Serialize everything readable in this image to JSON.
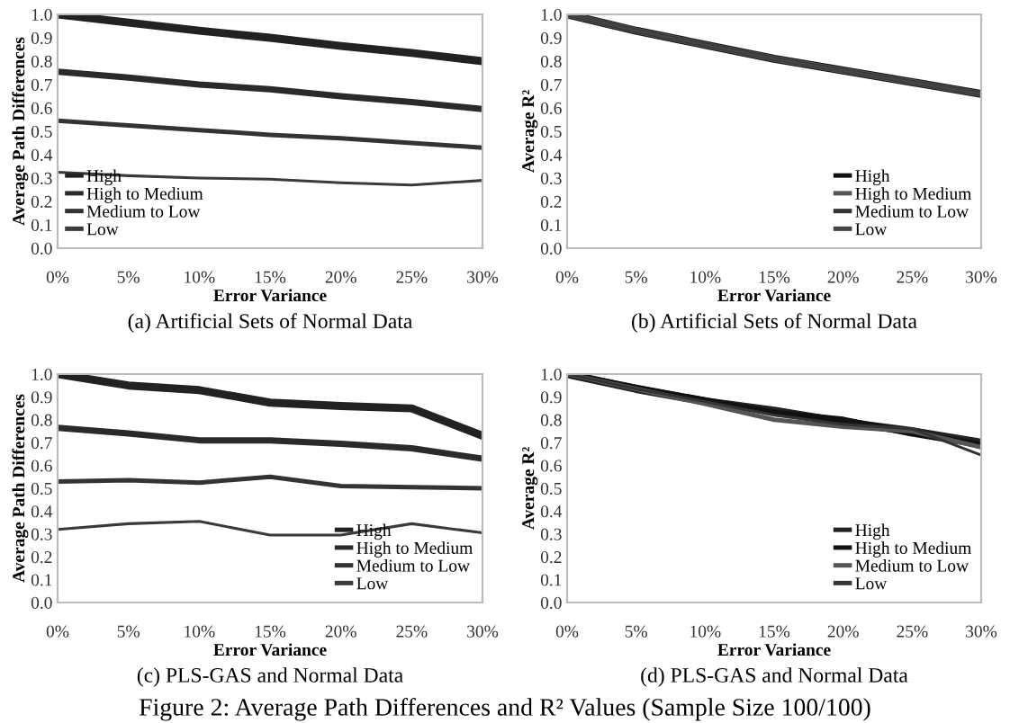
{
  "chart_data": [
    {
      "type": "line",
      "title": "(a) Artificial Sets of Normal Data",
      "xlabel": "Error Variance",
      "ylabel": "Average Path Differences",
      "categories": [
        "0%",
        "5%",
        "10%",
        "15%",
        "20%",
        "25%",
        "30%"
      ],
      "series": [
        {
          "name": "High",
          "color": "#222222",
          "values": [
            1.0,
            0.965,
            0.93,
            0.9,
            0.865,
            0.835,
            0.8
          ]
        },
        {
          "name": "High to Medium",
          "color": "#2a2a2a",
          "values": [
            0.755,
            0.73,
            0.7,
            0.68,
            0.65,
            0.625,
            0.595
          ]
        },
        {
          "name": "Medium to Low",
          "color": "#333333",
          "values": [
            0.545,
            0.525,
            0.505,
            0.485,
            0.47,
            0.45,
            0.43
          ]
        },
        {
          "name": "Low",
          "color": "#3a3a3a",
          "values": [
            0.325,
            0.31,
            0.3,
            0.295,
            0.28,
            0.27,
            0.29
          ]
        }
      ],
      "ylim": [
        0,
        1
      ],
      "yticks": [
        {
          "value": 0,
          "label": "0.0"
        },
        {
          "value": 0.1,
          "label": "0.1"
        },
        {
          "value": 0.2,
          "label": "0.2"
        },
        {
          "value": 0.3,
          "label": "0.3"
        },
        {
          "value": 0.4,
          "label": "0.4"
        },
        {
          "value": 0.5,
          "label": "0.5"
        },
        {
          "value": 0.6,
          "label": "0.6"
        },
        {
          "value": 0.7,
          "label": "0.7"
        },
        {
          "value": 0.8,
          "label": "0.8"
        },
        {
          "value": 0.9,
          "label": "0.9"
        },
        {
          "value": 1,
          "label": "1.0"
        }
      ],
      "legend": "bottom left",
      "grid": false
    },
    {
      "type": "line",
      "title": "(b) Artificial Sets of Normal Data",
      "xlabel": "Error Variance",
      "ylabel": "Average R²",
      "categories": [
        "0%",
        "5%",
        "10%",
        "15%",
        "20%",
        "25%",
        "30%"
      ],
      "series": [
        {
          "name": "High",
          "color": "#111111",
          "values": [
            1.0,
            0.93,
            0.87,
            0.81,
            0.76,
            0.71,
            0.66
          ]
        },
        {
          "name": "High to Medium",
          "color": "#555555",
          "values": [
            1.0,
            0.93,
            0.87,
            0.81,
            0.76,
            0.71,
            0.66
          ]
        },
        {
          "name": "Medium to Low",
          "color": "#333333",
          "values": [
            1.0,
            0.93,
            0.87,
            0.81,
            0.76,
            0.71,
            0.66
          ]
        },
        {
          "name": "Low",
          "color": "#444444",
          "values": [
            1.0,
            0.93,
            0.87,
            0.81,
            0.76,
            0.71,
            0.66
          ]
        }
      ],
      "ylim": [
        0,
        1
      ],
      "yticks": [
        {
          "value": 0,
          "label": "0.0"
        },
        {
          "value": 0.1,
          "label": "0.1"
        },
        {
          "value": 0.2,
          "label": "0.2"
        },
        {
          "value": 0.3,
          "label": "0.3"
        },
        {
          "value": 0.4,
          "label": "0.4"
        },
        {
          "value": 0.5,
          "label": "0.5"
        },
        {
          "value": 0.6,
          "label": "0.6"
        },
        {
          "value": 0.7,
          "label": "0.7"
        },
        {
          "value": 0.8,
          "label": "0.8"
        },
        {
          "value": 0.9,
          "label": "0.9"
        },
        {
          "value": 1,
          "label": "1.0"
        }
      ],
      "legend": "bottom right",
      "grid": false
    },
    {
      "type": "line",
      "title": "(c) PLS-GAS and Normal Data",
      "xlabel": "Error Variance",
      "ylabel": "Average Path Differences",
      "categories": [
        "0%",
        "5%",
        "10%",
        "15%",
        "20%",
        "25%",
        "30%"
      ],
      "series": [
        {
          "name": "High",
          "color": "#222222",
          "values": [
            1.0,
            0.95,
            0.93,
            0.875,
            0.86,
            0.85,
            0.73
          ]
        },
        {
          "name": "High to Medium",
          "color": "#2a2a2a",
          "values": [
            0.765,
            0.74,
            0.71,
            0.71,
            0.695,
            0.675,
            0.63
          ]
        },
        {
          "name": "Medium to Low",
          "color": "#333333",
          "values": [
            0.53,
            0.535,
            0.525,
            0.55,
            0.51,
            0.505,
            0.5
          ]
        },
        {
          "name": "Low",
          "color": "#3a3a3a",
          "values": [
            0.32,
            0.345,
            0.355,
            0.295,
            0.295,
            0.345,
            0.305
          ]
        }
      ],
      "ylim": [
        0,
        1
      ],
      "yticks": [
        {
          "value": 0,
          "label": "0.0"
        },
        {
          "value": 0.1,
          "label": "0.1"
        },
        {
          "value": 0.2,
          "label": "0.2"
        },
        {
          "value": 0.3,
          "label": "0.3"
        },
        {
          "value": 0.4,
          "label": "0.4"
        },
        {
          "value": 0.5,
          "label": "0.5"
        },
        {
          "value": 0.6,
          "label": "0.6"
        },
        {
          "value": 0.7,
          "label": "0.7"
        },
        {
          "value": 0.8,
          "label": "0.8"
        },
        {
          "value": 0.9,
          "label": "0.9"
        },
        {
          "value": 1,
          "label": "1.0"
        }
      ],
      "legend": "bottom right",
      "grid": false
    },
    {
      "type": "line",
      "title": "(d) PLS-GAS and Normal Data",
      "xlabel": "Error Variance",
      "ylabel": "Average R²",
      "categories": [
        "0%",
        "5%",
        "10%",
        "15%",
        "20%",
        "25%",
        "30%"
      ],
      "series": [
        {
          "name": "High",
          "color": "#222222",
          "values": [
            1.0,
            0.935,
            0.88,
            0.84,
            0.79,
            0.75,
            0.7
          ]
        },
        {
          "name": "High to Medium",
          "color": "#111111",
          "values": [
            1.0,
            0.94,
            0.885,
            0.83,
            0.8,
            0.74,
            0.69
          ]
        },
        {
          "name": "Medium to Low",
          "color": "#555555",
          "values": [
            1.0,
            0.935,
            0.87,
            0.8,
            0.77,
            0.75,
            0.68
          ]
        },
        {
          "name": "Low",
          "color": "#333333",
          "values": [
            1.0,
            0.935,
            0.88,
            0.82,
            0.78,
            0.76,
            0.645
          ]
        }
      ],
      "ylim": [
        0,
        1
      ],
      "yticks": [
        {
          "value": 0,
          "label": "0.0"
        },
        {
          "value": 0.1,
          "label": "0.1"
        },
        {
          "value": 0.2,
          "label": "0.2"
        },
        {
          "value": 0.3,
          "label": "0.3"
        },
        {
          "value": 0.4,
          "label": "0.4"
        },
        {
          "value": 0.5,
          "label": "0.5"
        },
        {
          "value": 0.6,
          "label": "0.6"
        },
        {
          "value": 0.7,
          "label": "0.7"
        },
        {
          "value": 0.8,
          "label": "0.8"
        },
        {
          "value": 0.9,
          "label": "0.9"
        },
        {
          "value": 1,
          "label": "1.0"
        }
      ],
      "legend": "bottom right",
      "grid": false,
      "annotations": [
        "Figure 2: Average Path Differences and R² Values (Sample Size 100/100)"
      ]
    }
  ]
}
